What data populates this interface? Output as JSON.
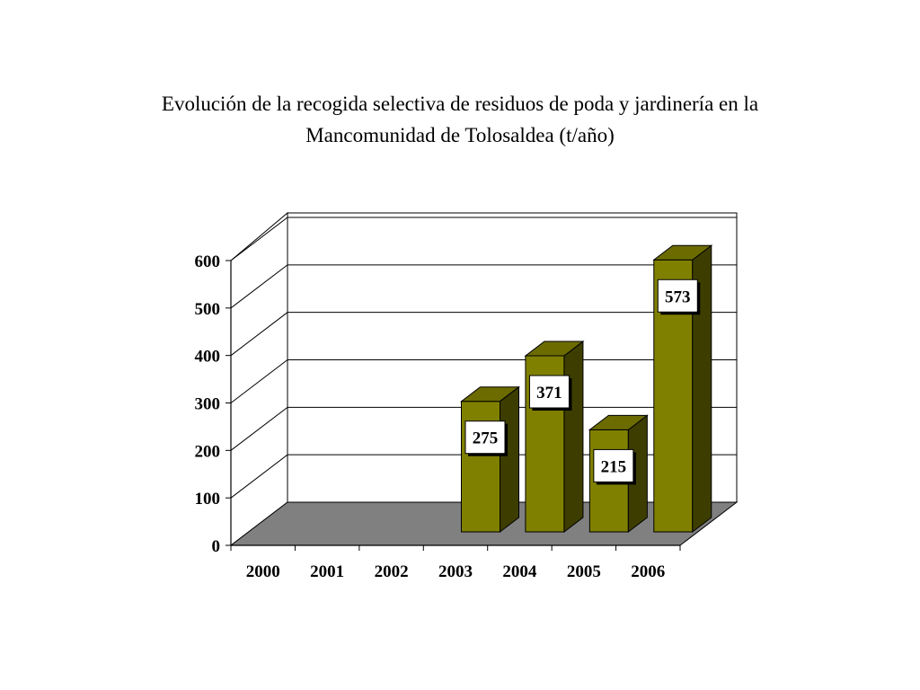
{
  "chart_data": {
    "type": "bar",
    "title_lines": [
      "Evolución de la recogida selectiva de residuos de poda y jardinería en la",
      "Mancomunidad de Tolosaldea (t/año)"
    ],
    "categories": [
      "2000",
      "2001",
      "2002",
      "2003",
      "2004",
      "2005",
      "2006"
    ],
    "values": [
      0,
      0,
      0,
      275,
      371,
      215,
      573
    ],
    "data_labels": [
      "",
      "",
      "",
      "275",
      "371",
      "215",
      "573"
    ],
    "ylim": [
      0,
      600
    ],
    "yticks": [
      "0",
      "100",
      "200",
      "300",
      "400",
      "500",
      "600"
    ],
    "grid": true,
    "legend": false,
    "three_d": true,
    "colors": {
      "bar_front": "#808000",
      "bar_top": "#6b6b00",
      "bar_side": "#3d3d00",
      "floor": "#808080",
      "gridline": "#000000",
      "label_box": "#ffffff"
    }
  }
}
